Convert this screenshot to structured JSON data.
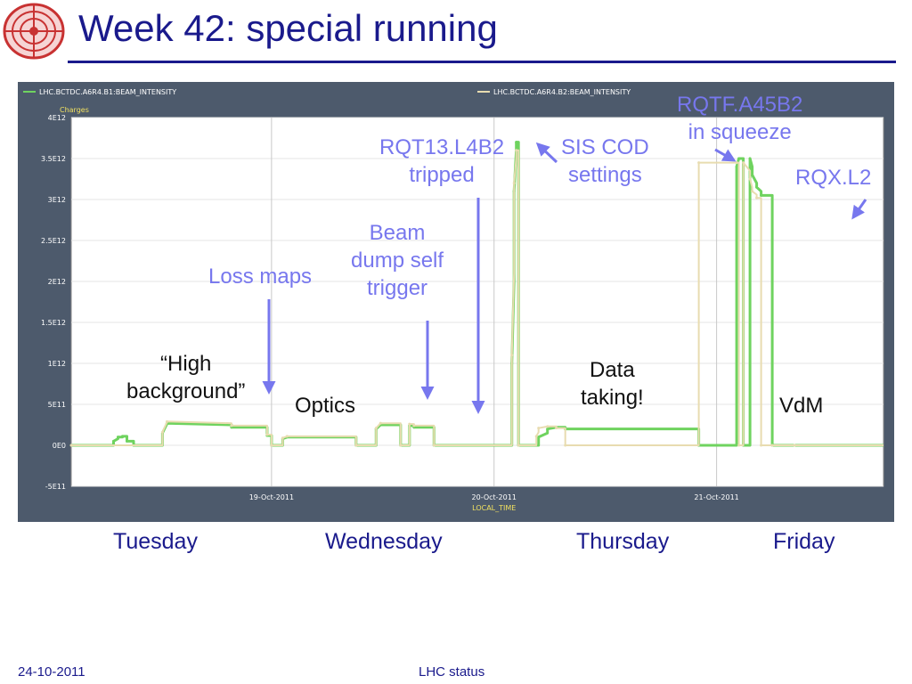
{
  "slide": {
    "title": "Week 42: special running",
    "footer_date": "24-10-2011",
    "footer_center": "LHC status",
    "days": [
      "Tuesday",
      "Wednesday",
      "Thursday",
      "Friday"
    ],
    "annotations_blue": [
      "Loss maps",
      "Beam\ndump self\ntrigger",
      "RQT13.L4B2\ntripped",
      "SIS COD\nsettings",
      "RQTF.A45B2\nin squeeze",
      "RQX.L2"
    ],
    "annotations_black": [
      "“High\nbackground”",
      "Optics",
      "Data\ntaking!",
      "VdM"
    ],
    "colors": {
      "title": "#1a1a8c",
      "annotation": "#7777ee",
      "chart_bg": "#4d5a6c",
      "plot_bg": "#ffffff",
      "beam1": "#6fd35f",
      "beam2": "#e8dcb0",
      "axis_title": "#f0e060"
    },
    "logo_icon": "lhc-ring-logo-icon"
  },
  "chart_data": {
    "type": "line",
    "legend": [
      "LHC.BCTDC.A6R4.B1:BEAM_INTENSITY",
      "LHC.BCTDC.A6R4.B2:BEAM_INTENSITY"
    ],
    "ylabel": "Charges",
    "xlabel": "LOCAL_TIME",
    "ylim": [
      -500000000000.0,
      4000000000000.0
    ],
    "y_ticks": [
      "-5E11",
      "0E0",
      "5E11",
      "1E12",
      "1.5E12",
      "2E12",
      "2.5E12",
      "3E12",
      "3.5E12",
      "4E12"
    ],
    "y_tick_values": [
      -500000000000.0,
      0,
      500000000000.0,
      1000000000000.0,
      1500000000000.0,
      2000000000000.0,
      2500000000000.0,
      3000000000000.0,
      3500000000000.0,
      4000000000000.0
    ],
    "x_ticks": [
      "19-Oct-2011",
      "20-Oct-2011",
      "21-Oct-2011"
    ],
    "x_tick_values": [
      19,
      20,
      21
    ],
    "xlim": [
      18.1,
      21.75
    ],
    "grid": true,
    "series": [
      {
        "name": "LHC.BCTDC.A6R4.B1:BEAM_INTENSITY",
        "x": [
          18.1,
          18.29,
          18.29,
          18.31,
          18.31,
          18.33,
          18.33,
          18.35,
          18.35,
          18.38,
          18.38,
          18.51,
          18.51,
          18.53,
          18.53,
          18.82,
          18.82,
          18.98,
          18.98,
          19.0,
          19.0,
          19.01,
          19.01,
          19.05,
          19.05,
          19.07,
          19.07,
          19.38,
          19.38,
          19.47,
          19.47,
          19.49,
          19.49,
          19.58,
          19.58,
          19.62,
          19.62,
          19.64,
          19.64,
          19.73,
          19.73,
          19.74,
          19.74,
          19.94,
          19.94,
          20.08,
          20.08,
          20.09,
          20.09,
          20.1,
          20.1,
          20.11,
          20.11,
          20.13,
          20.13,
          20.14,
          20.14,
          20.16,
          20.16,
          20.19,
          20.19,
          20.2,
          20.2,
          20.24,
          20.24,
          20.28,
          20.28,
          20.32,
          20.32,
          20.92,
          20.92,
          21.09,
          21.09,
          21.1,
          21.1,
          21.12,
          21.12,
          21.15,
          21.15,
          21.16,
          21.16,
          21.18,
          21.18,
          21.2,
          21.2,
          21.25,
          21.25,
          21.35,
          21.35,
          21.5,
          21.5,
          21.55,
          21.55,
          21.58,
          21.58,
          21.62,
          21.62,
          21.63,
          21.63,
          21.72,
          21.72,
          21.75
        ],
        "values": [
          0,
          0,
          50000000000.0,
          80000000000.0,
          100000000000.0,
          100000000000.0,
          110000000000.0,
          110000000000.0,
          50000000000.0,
          50000000000.0,
          0,
          0,
          150000000000.0,
          260000000000.0,
          270000000000.0,
          250000000000.0,
          220000000000.0,
          220000000000.0,
          120000000000.0,
          120000000000.0,
          0,
          0,
          0,
          0,
          80000000000.0,
          100000000000.0,
          100000000000.0,
          100000000000.0,
          0,
          0,
          200000000000.0,
          250000000000.0,
          250000000000.0,
          250000000000.0,
          0,
          0,
          240000000000.0,
          240000000000.0,
          220000000000.0,
          220000000000.0,
          0,
          0,
          0,
          0,
          0,
          0,
          1000000000000.0,
          2000000000000.0,
          3100000000000.0,
          3600000000000.0,
          3700000000000.0,
          3700000000000.0,
          0,
          0,
          0,
          0,
          0,
          0,
          0,
          0,
          0,
          0,
          100000000000.0,
          150000000000.0,
          200000000000.0,
          220000000000.0,
          220000000000.0,
          220000000000.0,
          200000000000.0,
          200000000000.0,
          0,
          0,
          3400000000000.0,
          3500000000000.0,
          3500000000000.0,
          3500000000000.0,
          0,
          0,
          3500000000000.0,
          3400000000000.0,
          3300000000000.0,
          3200000000000.0,
          3150000000000.0,
          3100000000000.0,
          3050000000000.0,
          3050000000000.0,
          0,
          0,
          0,
          0,
          0,
          0,
          0,
          0,
          0,
          0,
          0,
          0,
          0,
          0,
          0,
          0
        ]
      },
      {
        "name": "LHC.BCTDC.A6R4.B2:BEAM_INTENSITY",
        "x": [
          18.1,
          18.51,
          18.51,
          18.53,
          18.53,
          18.82,
          18.82,
          18.98,
          18.98,
          19.0,
          19.0,
          19.05,
          19.05,
          19.07,
          19.07,
          19.38,
          19.38,
          19.47,
          19.47,
          19.49,
          19.49,
          19.58,
          19.58,
          19.62,
          19.62,
          19.64,
          19.64,
          19.73,
          19.73,
          20.08,
          20.08,
          20.09,
          20.09,
          20.1,
          20.1,
          20.11,
          20.11,
          20.19,
          20.19,
          20.2,
          20.2,
          20.24,
          20.24,
          20.28,
          20.28,
          20.32,
          20.32,
          20.92,
          20.92,
          21.09,
          21.09,
          21.1,
          21.1,
          21.12,
          21.12,
          21.15,
          21.15,
          21.16,
          21.16,
          21.18,
          21.18,
          21.2,
          21.2,
          21.25,
          21.25,
          21.35,
          21.35,
          21.75
        ],
        "values": [
          0,
          0,
          160000000000.0,
          280000000000.0,
          290000000000.0,
          270000000000.0,
          240000000000.0,
          240000000000.0,
          130000000000.0,
          130000000000.0,
          0,
          0,
          90000000000.0,
          110000000000.0,
          110000000000.0,
          110000000000.0,
          0,
          0,
          210000000000.0,
          270000000000.0,
          270000000000.0,
          270000000000.0,
          0,
          0,
          260000000000.0,
          260000000000.0,
          240000000000.0,
          240000000000.0,
          0,
          0,
          1100000000000.0,
          2100000000000.0,
          3200000000000.0,
          3500000000000.0,
          3600000000000.0,
          3600000000000.0,
          0,
          0,
          110000000000.0,
          160000000000.0,
          210000000000.0,
          230000000000.0,
          230000000000.0,
          230000000000.0,
          210000000000.0,
          210000000000.0,
          0,
          0,
          3450000000000.0,
          3450000000000.0,
          3450000000000.0,
          3450000000000.0,
          0,
          0,
          3450000000000.0,
          3350000000000.0,
          3250000000000.0,
          3150000000000.0,
          3100000000000.0,
          3060000000000.0,
          3020000000000.0,
          3020000000000.0,
          0,
          0,
          0,
          0,
          0,
          0
        ]
      }
    ]
  }
}
